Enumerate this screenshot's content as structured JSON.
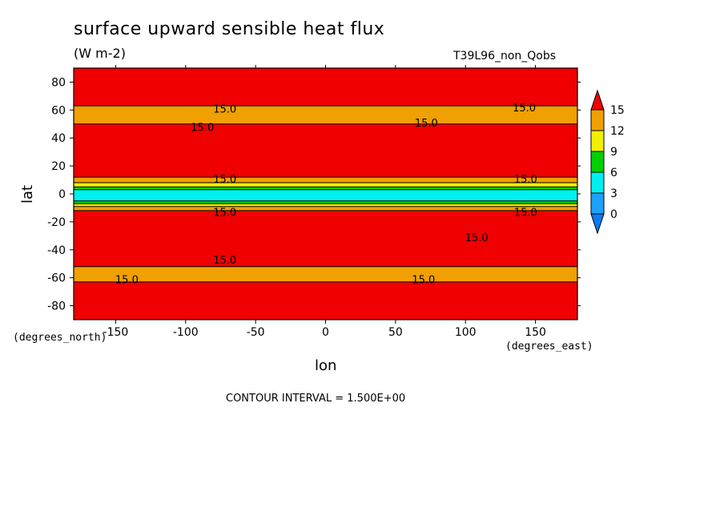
{
  "chart_data": {
    "type": "heatmap",
    "title": "surface upward sensible heat flux",
    "units": "(W m-2)",
    "run_label": "T39L96_non_Qobs",
    "xlabel": "lon",
    "ylabel": "lat",
    "x_units": "(degrees_east)",
    "y_units": "(degrees_north)",
    "xlim": [
      -180,
      180
    ],
    "ylim": [
      -90,
      90
    ],
    "x_ticks": [
      -150,
      -100,
      -50,
      0,
      50,
      100,
      150
    ],
    "y_ticks": [
      80,
      60,
      40,
      20,
      0,
      -20,
      -40,
      -60,
      -80
    ],
    "x_tick_labels": [
      "-150",
      "-100",
      "-50",
      "0",
      "50",
      "100",
      "150"
    ],
    "y_tick_labels": [
      "80",
      "60",
      "40",
      "20",
      "0",
      "-20",
      "-40",
      "-60",
      "-80"
    ],
    "colorbar": {
      "levels": [
        0,
        3,
        6,
        9,
        12,
        15
      ],
      "labels": [
        "15",
        "12",
        "9",
        "6",
        "3",
        "0"
      ],
      "colors": {
        "below_0": "#0a7cf0",
        "0_3": "#1ea0ff",
        "3_6": "#00f0f0",
        "6_9": "#00d000",
        "9_12": "#f0f000",
        "12_15": "#f0a000",
        "above_15": "#f00000"
      }
    },
    "bands": [
      {
        "lat_range": [
          -90,
          -63
        ],
        "level": "above_15"
      },
      {
        "lat_range": [
          -63,
          -52
        ],
        "level": "12_15"
      },
      {
        "lat_range": [
          -52,
          -12
        ],
        "level": "above_15"
      },
      {
        "lat_range": [
          -12,
          -9
        ],
        "level": "12_15"
      },
      {
        "lat_range": [
          -9,
          -7
        ],
        "level": "9_12"
      },
      {
        "lat_range": [
          -7,
          -5
        ],
        "level": "6_9"
      },
      {
        "lat_range": [
          -5,
          3
        ],
        "level": "3_6"
      },
      {
        "lat_range": [
          3,
          5
        ],
        "level": "6_9"
      },
      {
        "lat_range": [
          5,
          8
        ],
        "level": "9_12"
      },
      {
        "lat_range": [
          8,
          12
        ],
        "level": "12_15"
      },
      {
        "lat_range": [
          12,
          50
        ],
        "level": "above_15"
      },
      {
        "lat_range": [
          50,
          63
        ],
        "level": "12_15"
      },
      {
        "lat_range": [
          63,
          90
        ],
        "level": "above_15"
      }
    ],
    "contour_labels": [
      {
        "text": "15.0",
        "lon": -72,
        "lat": 61
      },
      {
        "text": "15.0",
        "lon": -88,
        "lat": 48
      },
      {
        "text": "15.0",
        "lon": 72,
        "lat": 51
      },
      {
        "text": "15.0",
        "lon": 142,
        "lat": 62
      },
      {
        "text": "15.0",
        "lon": -72,
        "lat": 11
      },
      {
        "text": "15.0",
        "lon": 143,
        "lat": 11
      },
      {
        "text": "15.0",
        "lon": -72,
        "lat": -13
      },
      {
        "text": "15.0",
        "lon": 143,
        "lat": -13
      },
      {
        "text": "15.0",
        "lon": 108,
        "lat": -31
      },
      {
        "text": "15.0",
        "lon": -72,
        "lat": -47
      },
      {
        "text": "15.0",
        "lon": -142,
        "lat": -61
      },
      {
        "text": "15.0",
        "lon": 70,
        "lat": -61
      }
    ],
    "contour_interval_text": "CONTOUR INTERVAL = 1.500E+00"
  }
}
